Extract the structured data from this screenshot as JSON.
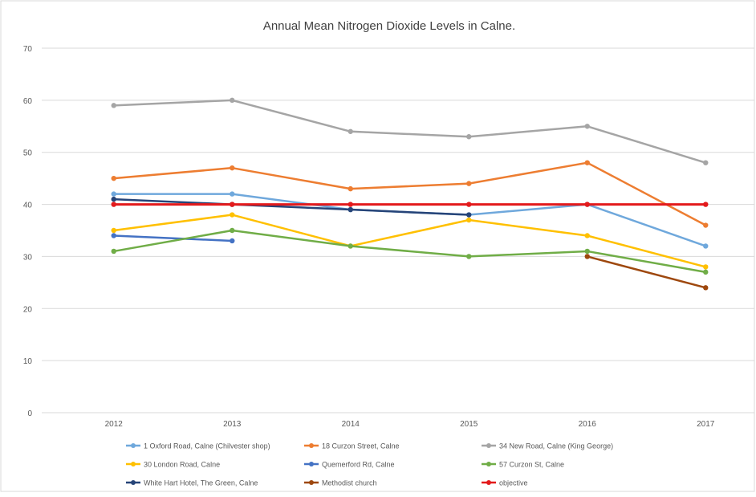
{
  "chart_data": {
    "type": "line",
    "title": "Annual Mean Nitrogen Dioxide Levels in Calne.",
    "xlabel": "",
    "ylabel": "",
    "categories": [
      "2012",
      "2013",
      "2014",
      "2015",
      "2016",
      "2017"
    ],
    "ylim": [
      0,
      70
    ],
    "yticks": [
      0,
      10,
      20,
      30,
      40,
      50,
      60,
      70
    ],
    "grid": true,
    "legend_position": "bottom",
    "series": [
      {
        "name": "1 Oxford Road, Calne (Chilvester shop)",
        "color": "#6fa8dc",
        "values": [
          42,
          42,
          39,
          38,
          40,
          32
        ]
      },
      {
        "name": "18 Curzon Street, Calne",
        "color": "#ed7d31",
        "values": [
          45,
          47,
          43,
          44,
          48,
          36
        ]
      },
      {
        "name": "34 New Road, Calne (King George)",
        "color": "#a5a5a5",
        "values": [
          59,
          60,
          54,
          53,
          55,
          48
        ]
      },
      {
        "name": "30 London Road, Calne",
        "color": "#ffc000",
        "values": [
          35,
          38,
          32,
          37,
          34,
          28
        ]
      },
      {
        "name": "Quemerford Rd, Calne",
        "color": "#4472c4",
        "values": [
          34,
          33,
          null,
          null,
          null,
          null
        ]
      },
      {
        "name": "57 Curzon St, Calne",
        "color": "#70ad47",
        "values": [
          31,
          35,
          32,
          30,
          31,
          27
        ]
      },
      {
        "name": "White Hart Hotel, The Green, Calne",
        "color": "#264478",
        "values": [
          41,
          40,
          39,
          38,
          null,
          null
        ]
      },
      {
        "name": "Methodist church",
        "color": "#9e480e",
        "values": [
          null,
          null,
          null,
          null,
          30,
          24
        ]
      },
      {
        "name": "objective",
        "color": "#e31a1c",
        "values": [
          40,
          40,
          40,
          40,
          40,
          40
        ]
      }
    ]
  }
}
